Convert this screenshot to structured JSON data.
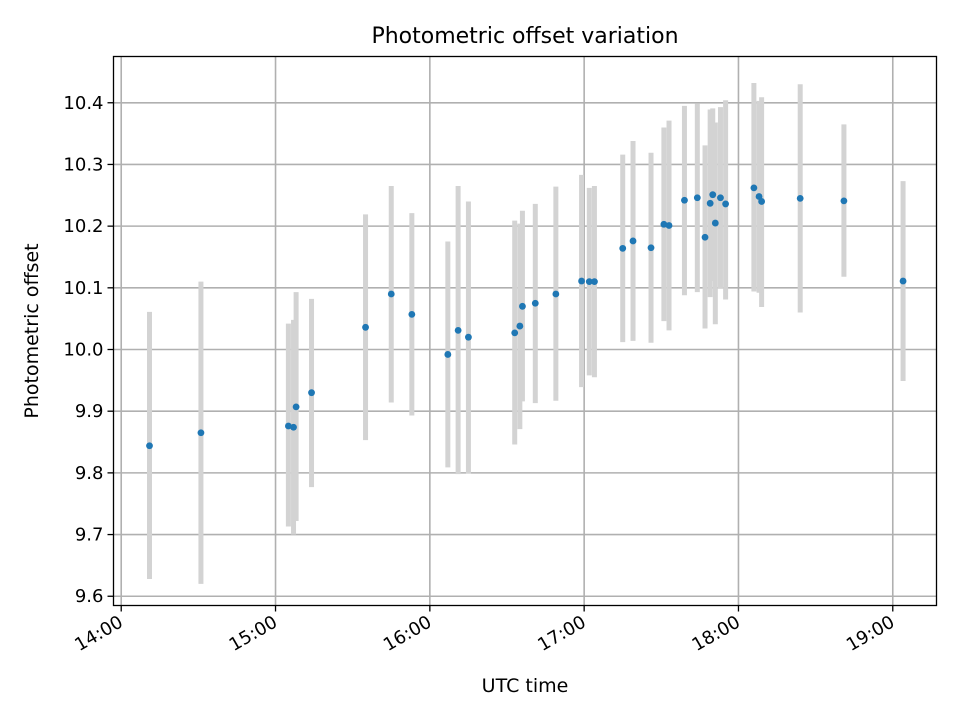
{
  "chart_data": {
    "type": "scatter",
    "title": "Photometric offset variation",
    "xlabel": "UTC time",
    "ylabel": "Photometric offset",
    "x_is_time": true,
    "xlim": [
      "13:57",
      "19:17"
    ],
    "ylim": [
      9.585,
      10.475
    ],
    "xticks": [
      "14:00",
      "15:00",
      "16:00",
      "17:00",
      "18:00",
      "19:00"
    ],
    "yticks": [
      9.6,
      9.7,
      9.8,
      9.9,
      10.0,
      10.1,
      10.2,
      10.3,
      10.4
    ],
    "ytick_labels": [
      "9.6",
      "9.7",
      "9.8",
      "9.9",
      "10.0",
      "10.1",
      "10.2",
      "10.3",
      "10.4"
    ],
    "grid": true,
    "marker_color": "#1f77b4",
    "errorbar_color": "#d3d3d3",
    "points": [
      {
        "x": "14:11",
        "y": 9.844,
        "lo": 9.628,
        "hi": 10.061
      },
      {
        "x": "14:31",
        "y": 9.865,
        "lo": 9.62,
        "hi": 10.11
      },
      {
        "x": "15:05",
        "y": 9.876,
        "lo": 9.713,
        "hi": 10.042
      },
      {
        "x": "15:07",
        "y": 9.874,
        "lo": 9.7,
        "hi": 10.048
      },
      {
        "x": "15:08",
        "y": 9.907,
        "lo": 9.722,
        "hi": 10.093
      },
      {
        "x": "15:14",
        "y": 9.93,
        "lo": 9.777,
        "hi": 10.082
      },
      {
        "x": "15:35",
        "y": 10.036,
        "lo": 9.853,
        "hi": 10.219
      },
      {
        "x": "15:45",
        "y": 10.09,
        "lo": 9.914,
        "hi": 10.265
      },
      {
        "x": "15:53",
        "y": 10.057,
        "lo": 9.893,
        "hi": 10.221
      },
      {
        "x": "16:07",
        "y": 9.992,
        "lo": 9.809,
        "hi": 10.175
      },
      {
        "x": "16:11",
        "y": 10.031,
        "lo": 9.798,
        "hi": 10.265
      },
      {
        "x": "16:15",
        "y": 10.02,
        "lo": 9.799,
        "hi": 10.24
      },
      {
        "x": "16:33",
        "y": 10.027,
        "lo": 9.846,
        "hi": 10.209
      },
      {
        "x": "16:35",
        "y": 10.038,
        "lo": 9.871,
        "hi": 10.204
      },
      {
        "x": "16:36",
        "y": 10.07,
        "lo": 9.916,
        "hi": 10.225
      },
      {
        "x": "16:41",
        "y": 10.075,
        "lo": 9.913,
        "hi": 10.236
      },
      {
        "x": "16:49",
        "y": 10.09,
        "lo": 9.917,
        "hi": 10.264
      },
      {
        "x": "16:59",
        "y": 10.111,
        "lo": 9.939,
        "hi": 10.283
      },
      {
        "x": "17:02",
        "y": 10.11,
        "lo": 9.958,
        "hi": 10.262
      },
      {
        "x": "17:04",
        "y": 10.11,
        "lo": 9.955,
        "hi": 10.265
      },
      {
        "x": "17:15",
        "y": 10.164,
        "lo": 10.012,
        "hi": 10.316
      },
      {
        "x": "17:19",
        "y": 10.176,
        "lo": 10.014,
        "hi": 10.338
      },
      {
        "x": "17:26",
        "y": 10.165,
        "lo": 10.011,
        "hi": 10.319
      },
      {
        "x": "17:31",
        "y": 10.203,
        "lo": 10.046,
        "hi": 10.36
      },
      {
        "x": "17:33",
        "y": 10.201,
        "lo": 10.031,
        "hi": 10.371
      },
      {
        "x": "17:39",
        "y": 10.242,
        "lo": 10.088,
        "hi": 10.395
      },
      {
        "x": "17:44",
        "y": 10.246,
        "lo": 10.093,
        "hi": 10.399
      },
      {
        "x": "17:47",
        "y": 10.182,
        "lo": 10.034,
        "hi": 10.331
      },
      {
        "x": "17:49",
        "y": 10.237,
        "lo": 10.085,
        "hi": 10.389
      },
      {
        "x": "17:50",
        "y": 10.251,
        "lo": 10.111,
        "hi": 10.391
      },
      {
        "x": "17:51",
        "y": 10.205,
        "lo": 10.041,
        "hi": 10.368
      },
      {
        "x": "17:53",
        "y": 10.246,
        "lo": 10.099,
        "hi": 10.393
      },
      {
        "x": "17:55",
        "y": 10.236,
        "lo": 10.081,
        "hi": 10.404
      },
      {
        "x": "18:06",
        "y": 10.262,
        "lo": 10.094,
        "hi": 10.432
      },
      {
        "x": "18:08",
        "y": 10.248,
        "lo": 10.092,
        "hi": 10.403
      },
      {
        "x": "18:09",
        "y": 10.24,
        "lo": 10.069,
        "hi": 10.409
      },
      {
        "x": "18:24",
        "y": 10.245,
        "lo": 10.06,
        "hi": 10.43
      },
      {
        "x": "18:41",
        "y": 10.241,
        "lo": 10.118,
        "hi": 10.365
      },
      {
        "x": "19:04",
        "y": 10.111,
        "lo": 9.949,
        "hi": 10.273
      }
    ]
  }
}
